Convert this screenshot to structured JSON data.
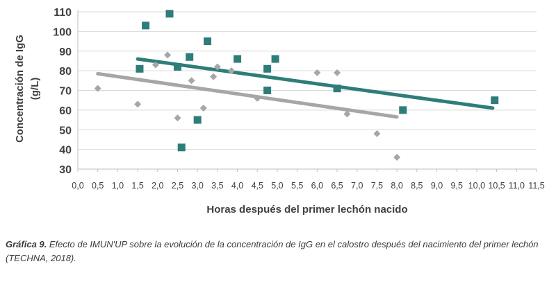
{
  "chart_data": {
    "type": "scatter",
    "xlabel": "Horas después del primer lechón nacido",
    "ylabel_line1": "Concentración de IgG",
    "ylabel_line2": "(g/L)",
    "xlim": [
      0,
      11.5
    ],
    "ylim": [
      30,
      110
    ],
    "x_ticks": [
      "0,0",
      "0,5",
      "1,0",
      "1,5",
      "2,0",
      "2,5",
      "3,0",
      "3,5",
      "4,0",
      "4,5",
      "5,0",
      "5,5",
      "6,0",
      "6,5",
      "7,0",
      "7,5",
      "8,0",
      "8,5",
      "9,0",
      "9,5",
      "10,0",
      "10,5",
      "11,0",
      "11,5"
    ],
    "y_ticks": [
      "30",
      "40",
      "50",
      "60",
      "70",
      "80",
      "90",
      "100",
      "110"
    ],
    "grid": "horizontal",
    "legend": "none",
    "colors": {
      "series_gray": "#a6a6a6",
      "series_teal": "#2e7d7a",
      "grid": "#d9d9d9",
      "text": "#404040"
    },
    "series": [
      {
        "marker": "diamond",
        "color": "#a6a6a6",
        "x": [
          0.5,
          1.5,
          1.95,
          2.25,
          2.5,
          2.85,
          3.15,
          3.4,
          3.5,
          3.85,
          4.5,
          6.0,
          6.5,
          6.75,
          7.5,
          8.0
        ],
        "y": [
          71,
          63,
          83,
          88,
          56,
          75,
          61,
          77,
          82,
          80,
          66,
          79,
          79,
          58,
          48,
          36
        ],
        "trend": {
          "x": [
            0.5,
            8.0
          ],
          "y": [
            78.5,
            56.5
          ]
        }
      },
      {
        "marker": "square",
        "color": "#2e7d7a",
        "x": [
          1.55,
          1.7,
          2.3,
          2.5,
          2.6,
          2.8,
          3.0,
          3.25,
          4.0,
          4.75,
          4.75,
          4.95,
          6.5,
          8.15,
          10.45
        ],
        "y": [
          81,
          103,
          109,
          82,
          41,
          87,
          55,
          95,
          86,
          81,
          70,
          86,
          71,
          60,
          65
        ],
        "trend": {
          "x": [
            1.5,
            10.4
          ],
          "y": [
            86,
            61
          ]
        }
      }
    ]
  },
  "caption": {
    "label": "Gráfica 9.",
    "text": " Efecto de IMUN'UP sobre la evolución de la concentración de IgG en el calostro después del nacimiento del primer lechón (TECHNA, 2018)."
  }
}
